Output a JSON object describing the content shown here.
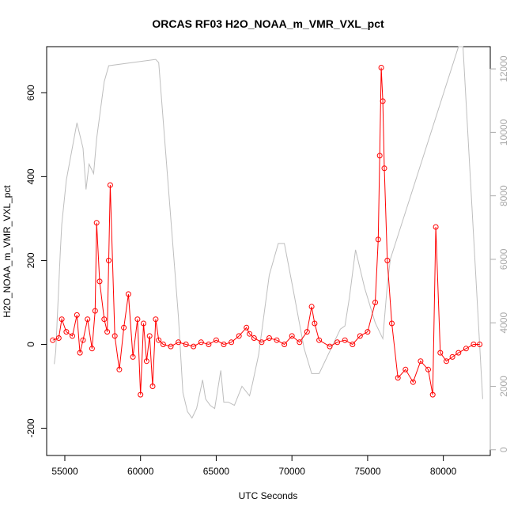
{
  "chart_data": {
    "type": "line",
    "title": "ORCAS RF03 H2O_NOAA_m_VMR_VXL_pct",
    "xlabel": "UTC Seconds",
    "ylabel": "H2O_NOAA_m_VMR_VXL_pct",
    "xlim": [
      53800,
      83100
    ],
    "ylim": [
      -265,
      710
    ],
    "y2lim": [
      -180,
      12700
    ],
    "x_ticks": [
      55000,
      60000,
      65000,
      70000,
      75000,
      80000
    ],
    "y_ticks": [
      -200,
      0,
      200,
      400,
      600
    ],
    "y2_ticks": [
      0,
      2000,
      4000,
      6000,
      8000,
      10000,
      12000
    ],
    "grid": false,
    "colors": {
      "primary": "#ff0000",
      "secondary": "#bebebe"
    },
    "series": [
      {
        "values_axis": "left",
        "x": [
          54200,
          54600,
          54800,
          55100,
          55500,
          55800,
          56000,
          56200,
          56500,
          56800,
          57000,
          57100,
          57300,
          57600,
          57800,
          57900,
          58000,
          58300,
          58600,
          58900,
          59200,
          59500,
          59800,
          60000,
          60200,
          60400,
          60600,
          60800,
          61000,
          61200,
          61500,
          62000,
          62500,
          63000,
          63500,
          64000,
          64500,
          65000,
          65500,
          66000,
          66500,
          67000,
          67200,
          67500,
          68000,
          68500,
          69000,
          69500,
          70000,
          70500,
          71000,
          71300,
          71500,
          71800,
          72500,
          73000,
          73500,
          74000,
          74500,
          75000,
          75500,
          75700,
          75800,
          75900,
          76000,
          76100,
          76300,
          76600,
          77000,
          77500,
          78000,
          78500,
          79000,
          79300,
          79500,
          79800,
          80200,
          80600,
          81000,
          81500,
          82000,
          82400
        ],
        "y": [
          10,
          15,
          60,
          30,
          20,
          70,
          -20,
          10,
          60,
          -10,
          80,
          290,
          150,
          60,
          30,
          200,
          380,
          20,
          -60,
          40,
          120,
          -30,
          60,
          -120,
          50,
          -40,
          20,
          -100,
          60,
          10,
          0,
          -5,
          5,
          0,
          -5,
          5,
          0,
          10,
          0,
          5,
          20,
          40,
          25,
          15,
          5,
          15,
          10,
          0,
          20,
          5,
          30,
          90,
          50,
          10,
          -5,
          5,
          10,
          0,
          20,
          30,
          100,
          250,
          450,
          660,
          580,
          420,
          200,
          50,
          -80,
          -60,
          -90,
          -40,
          -60,
          -120,
          280,
          -20,
          -40,
          -30,
          -20,
          -10,
          0,
          0
        ],
        "marker": "circle"
      },
      {
        "values_axis": "right",
        "x": [
          54300,
          54400,
          54700,
          54800,
          55100,
          55800,
          55900,
          56200,
          56400,
          56600,
          56900,
          57100,
          57600,
          57900,
          61000,
          61200,
          62500,
          62800,
          63100,
          63400,
          63700,
          64100,
          64300,
          64600,
          64900,
          65300,
          65500,
          65800,
          66200,
          66700,
          67200,
          67400,
          67800,
          68500,
          69100,
          69500,
          70100,
          70800,
          71300,
          71800,
          73200,
          73500,
          73800,
          74200,
          74800,
          75500,
          76000,
          76300,
          76500,
          81000,
          81300,
          82600
        ],
        "y": [
          2700,
          3100,
          6200,
          7100,
          8500,
          10300,
          10100,
          9500,
          8200,
          9000,
          8700,
          9800,
          11600,
          12100,
          12300,
          12200,
          4200,
          1800,
          1200,
          1000,
          1300,
          2200,
          1600,
          1400,
          1300,
          2500,
          1500,
          1500,
          1400,
          2000,
          1700,
          2100,
          3000,
          5500,
          6500,
          6500,
          5000,
          3200,
          2400,
          2400,
          3800,
          3900,
          4800,
          6300,
          5100,
          4000,
          3500,
          5200,
          6000,
          12700,
          12700,
          1600
        ]
      }
    ]
  }
}
